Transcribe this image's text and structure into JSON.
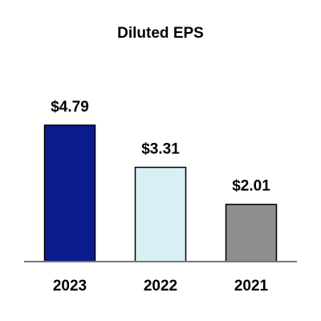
{
  "chart_data": {
    "type": "bar",
    "title": "Diluted EPS",
    "categories": [
      "2023",
      "2022",
      "2021"
    ],
    "values": [
      4.79,
      3.31,
      2.01
    ],
    "value_labels": [
      "$4.79",
      "$3.31",
      "$2.01"
    ],
    "colors": [
      "#0b1a8c",
      "#d6f0f4",
      "#8e8e8e"
    ],
    "edgecolor": "#000000"
  }
}
